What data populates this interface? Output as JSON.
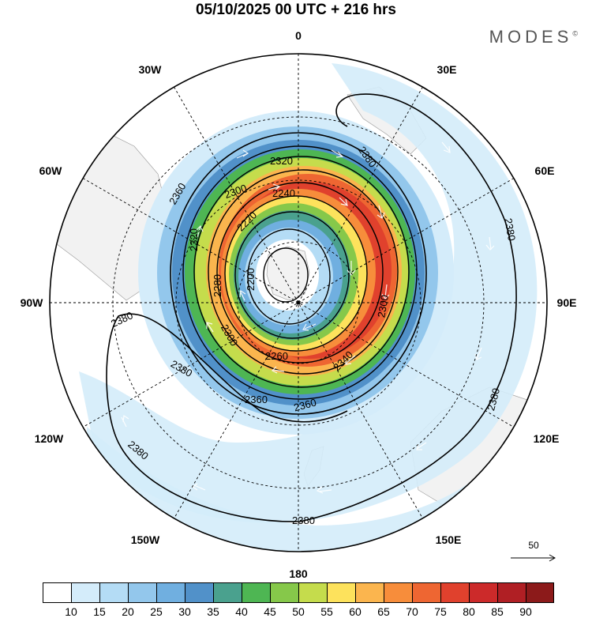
{
  "title": "05/10/2025  00 UTC  + 216 hrs",
  "brand": "MODES",
  "brand_mark": "©",
  "longitudes": {
    "top": "0",
    "bottom": "180",
    "left": "90W",
    "right": "90E",
    "w30": "30W",
    "w60": "60W",
    "w120": "120W",
    "w150": "150W",
    "e30": "30E",
    "e60": "60E",
    "e120": "120E",
    "e150": "150E"
  },
  "contour_labels": {
    "c2320_top": "2320",
    "c2300": "2300",
    "c2240": "2240",
    "c2220": "2220",
    "c2200": "2200",
    "c2260": "2260",
    "c2280_left": "2280",
    "c2300_bottom": "2300",
    "c2340": "2340",
    "c2320_left": "2320",
    "c2360_left": "2360",
    "c2360_bot1": "2360",
    "c2360_bot2": "2360",
    "c2380_ne": "2380",
    "c2380_e": "2380",
    "c2380_se": "2380",
    "c2380_w1": "2380",
    "c2380_w2": "2380",
    "c2380_sw": "2380",
    "c2380_s": "2380",
    "c2300_e": "2300"
  },
  "reference_vector": {
    "label": "50"
  },
  "colorbar": {
    "colors": [
      "#ffffff",
      "#d4ecfa",
      "#b4dcf5",
      "#93c7ec",
      "#70afe0",
      "#5191c9",
      "#4aa18e",
      "#4eb653",
      "#86c84a",
      "#c5dc4c",
      "#fde25c",
      "#fbb54e",
      "#f78d3b",
      "#ee6632",
      "#e0412d",
      "#cc2a2a",
      "#b01f24",
      "#8c1a1a"
    ],
    "labels": [
      "10",
      "15",
      "20",
      "25",
      "30",
      "35",
      "40",
      "45",
      "50",
      "55",
      "60",
      "65",
      "70",
      "75",
      "80",
      "85",
      "90"
    ]
  }
}
